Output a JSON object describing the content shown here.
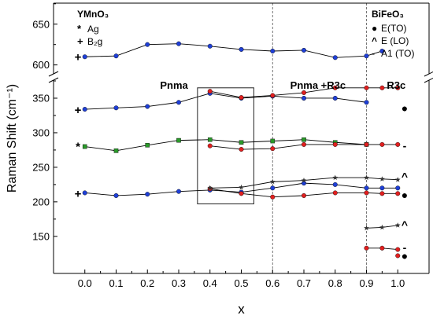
{
  "chart_data": {
    "type": "scatter",
    "title": "",
    "xlabel": "x",
    "ylabel": "Raman Shift (cm⁻¹)",
    "x_ticks": [
      "0.0",
      "0.1",
      "0.2",
      "0.3",
      "0.4",
      "0.5",
      "0.6",
      "0.7",
      "0.8",
      "0.9",
      "1.0"
    ],
    "xlim": [
      -0.1,
      1.1
    ],
    "ylim_lower": [
      110,
      375
    ],
    "ylim_upper": [
      590,
      670
    ],
    "axis_break": "between 375 and 590",
    "y_ticks_lower": [
      "150",
      "200",
      "250",
      "300",
      "350"
    ],
    "y_ticks_upper": [
      "600",
      "650"
    ],
    "grid": false,
    "phase_boundaries": [
      0.6,
      0.9
    ],
    "region_labels": [
      "Pnma",
      "Pnma +R3c",
      "R3c"
    ],
    "highlight_box": {
      "x_range": [
        0.36,
        0.54
      ],
      "y_range": [
        197,
        365
      ]
    },
    "legend_left": {
      "title": "YMnO₃",
      "items": [
        {
          "symbol": "*",
          "label": "Ag"
        },
        {
          "symbol": "+",
          "label": "B₂g"
        }
      ]
    },
    "legend_right": {
      "title": "BiFeO₃",
      "items": [
        {
          "symbol": "●",
          "label": "E(TO)"
        },
        {
          "symbol": "^",
          "label": "E (LO)"
        },
        {
          "symbol": "-",
          "label": "A1 (TO)"
        }
      ]
    },
    "left_mode_markers": [
      {
        "symbol": "+",
        "y": 610
      },
      {
        "symbol": "+",
        "y": 333
      },
      {
        "symbol": "*",
        "y": 280
      },
      {
        "symbol": "+",
        "y": 212
      }
    ],
    "right_mode_markers": [
      {
        "symbol": "●",
        "y": 336
      },
      {
        "symbol": "-",
        "y": 281
      },
      {
        "symbol": "^",
        "y": 237
      },
      {
        "symbol": "●",
        "y": 210
      },
      {
        "symbol": "^",
        "y": 167
      },
      {
        "symbol": "-",
        "y": 134
      },
      {
        "symbol": "●",
        "y": 122
      }
    ],
    "series": [
      {
        "color": "#1f3fd6",
        "marker": "circle",
        "x": [
          0.0,
          0.1,
          0.2,
          0.3,
          0.4,
          0.5,
          0.6,
          0.7,
          0.8,
          0.9,
          0.95
        ],
        "y": [
          610,
          611,
          625,
          626,
          623,
          619,
          617,
          618,
          609,
          611,
          617
        ]
      },
      {
        "color": "#1f3fd6",
        "marker": "circle",
        "x": [
          0.0,
          0.1,
          0.2,
          0.3,
          0.4,
          0.5,
          0.6,
          0.7,
          0.8,
          0.9
        ],
        "y": [
          334,
          336,
          338,
          344,
          357,
          350,
          353,
          350,
          350,
          344
        ]
      },
      {
        "color": "#e01f1f",
        "marker": "circle",
        "x": [
          0.4,
          0.5,
          0.6,
          0.7,
          0.8,
          0.9,
          0.95,
          1.0
        ],
        "y": [
          360,
          351,
          354,
          358,
          365,
          365,
          365,
          365
        ]
      },
      {
        "color": "#2a9a2a",
        "marker": "square",
        "x": [
          0.0,
          0.1,
          0.2,
          0.3,
          0.4,
          0.5,
          0.6,
          0.7,
          0.8,
          0.9
        ],
        "y": [
          280,
          274,
          282,
          289,
          290,
          286,
          288,
          290,
          286,
          283
        ]
      },
      {
        "color": "#e01f1f",
        "marker": "circle",
        "x": [
          0.4,
          0.5,
          0.6,
          0.7,
          0.8,
          0.9,
          0.95,
          1.0
        ],
        "y": [
          281,
          276,
          277,
          283,
          283,
          283,
          283,
          283
        ]
      },
      {
        "color": "#1f3fd6",
        "marker": "circle",
        "x": [
          0.0,
          0.1,
          0.2,
          0.3,
          0.4,
          0.5,
          0.6,
          0.7,
          0.8,
          0.9,
          0.95,
          1.0
        ],
        "y": [
          213,
          209,
          211,
          215,
          217,
          214,
          220,
          227,
          225,
          220,
          220,
          220
        ]
      },
      {
        "color": "#e01f1f",
        "marker": "circle",
        "x": [
          0.4,
          0.5,
          0.6,
          0.7,
          0.8,
          0.9,
          0.95,
          1.0
        ],
        "y": [
          219,
          212,
          207,
          209,
          213,
          213,
          212,
          212
        ]
      },
      {
        "color": "#333333",
        "marker": "star",
        "x": [
          0.4,
          0.5,
          0.6,
          0.7,
          0.8,
          0.9,
          0.95,
          1.0
        ],
        "y": [
          220,
          221,
          229,
          231,
          235,
          235,
          233,
          232
        ]
      },
      {
        "color": "#333333",
        "marker": "star",
        "x": [
          0.9,
          0.95,
          1.0
        ],
        "y": [
          162,
          163,
          166
        ]
      },
      {
        "color": "#e01f1f",
        "marker": "circle",
        "x": [
          0.9,
          0.95,
          1.0
        ],
        "y": [
          133,
          133,
          131
        ]
      },
      {
        "color": "#e01f1f",
        "marker": "circle",
        "x": [
          1.0
        ],
        "y": [
          122
        ]
      }
    ]
  }
}
